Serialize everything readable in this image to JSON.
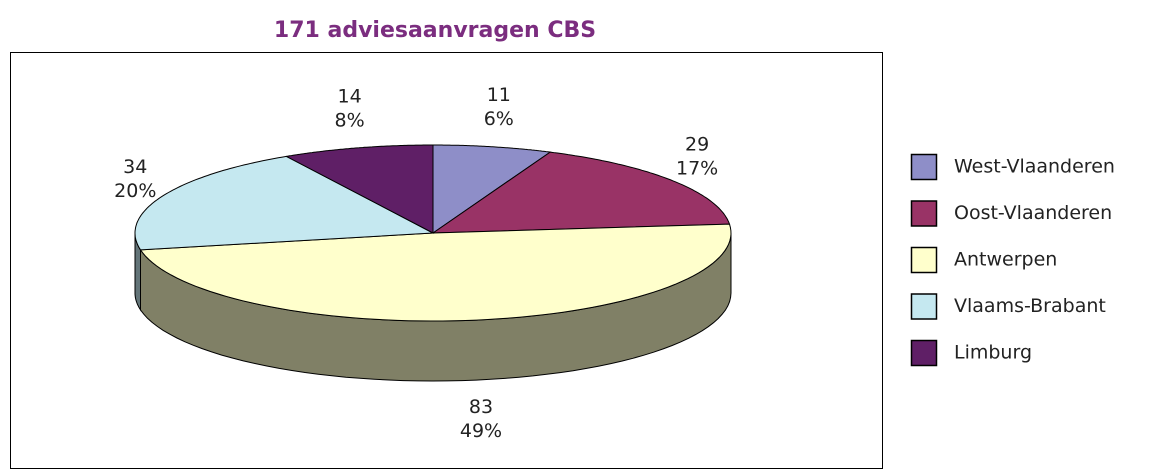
{
  "chart_data": {
    "type": "pie3d",
    "title": "171 adviesaanvragen CBS",
    "categories": [
      "West-Vlaanderen",
      "Oost-Vlaanderen",
      "Antwerpen",
      "Vlaams-Brabant",
      "Limburg"
    ],
    "values": [
      11,
      29,
      83,
      34,
      14
    ],
    "percentages": [
      6,
      17,
      49,
      20,
      8
    ],
    "percentage_labels": [
      "6%",
      "17%",
      "49%",
      "20%",
      "8%"
    ],
    "colors": [
      "#8e8ec8",
      "#993366",
      "#ffffcc",
      "#c5e8f0",
      "#5f1f66"
    ],
    "legend": "right"
  }
}
